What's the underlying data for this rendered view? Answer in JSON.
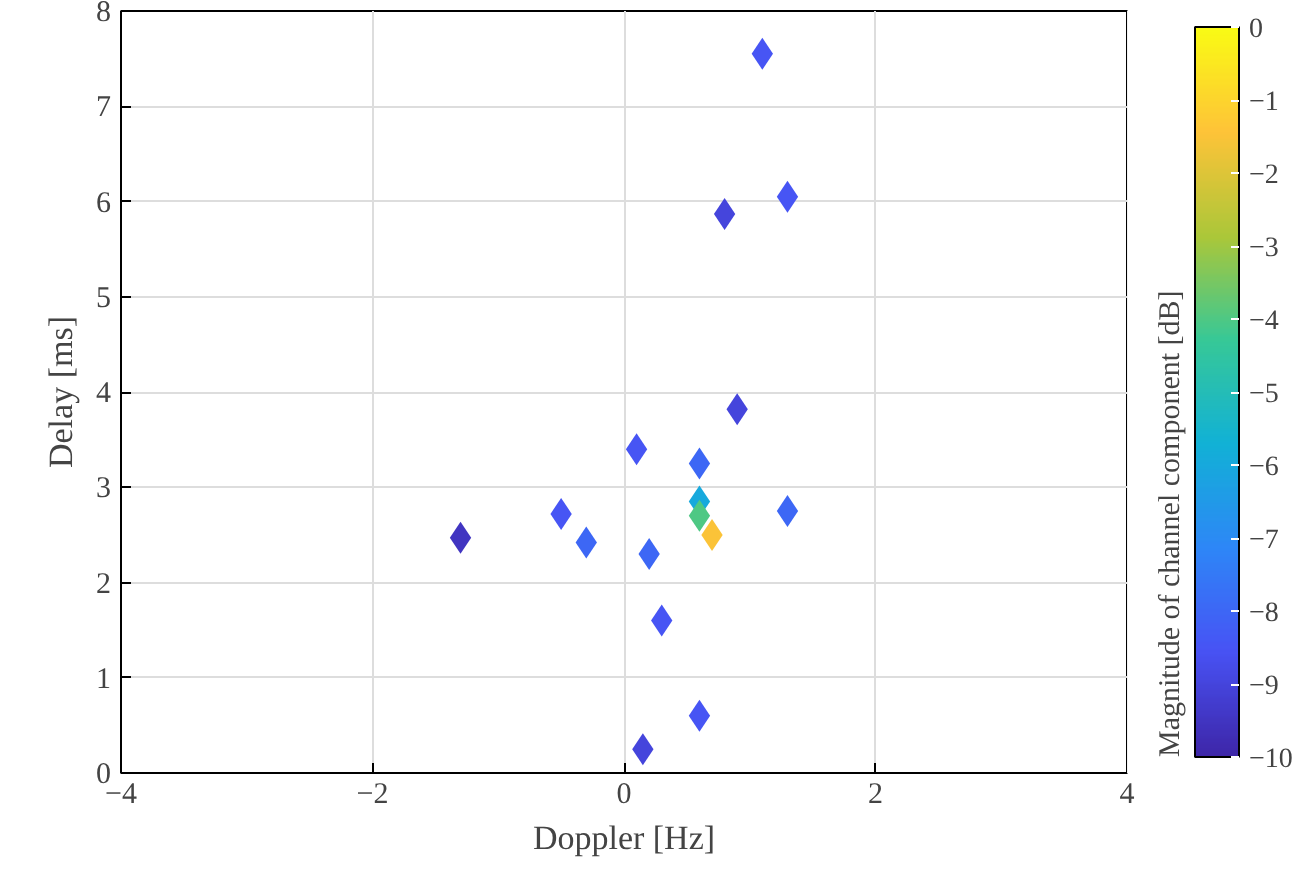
{
  "chart_data": {
    "type": "scatter",
    "xlabel": "Doppler [Hz]",
    "ylabel": "Delay [ms]",
    "clabel": "Magnitude of channel component [dB]",
    "x": [
      1.1,
      1.3,
      0.8,
      0.9,
      0.1,
      0.6,
      0.6,
      0.6,
      0.7,
      1.3,
      -0.5,
      -0.3,
      0.2,
      -1.3,
      0.3,
      0.6,
      0.15
    ],
    "values": [
      7.55,
      6.05,
      5.87,
      3.82,
      3.4,
      3.25,
      2.85,
      2.7,
      2.5,
      2.75,
      2.72,
      2.42,
      2.3,
      2.47,
      1.6,
      0.6,
      0.25
    ],
    "cvalues": [
      -8.5,
      -8.5,
      -9,
      -9,
      -8.5,
      -8,
      -6,
      -4,
      -1.5,
      -8,
      -8.5,
      -8,
      -8,
      -9.5,
      -8.5,
      -8.5,
      -9
    ],
    "xlim": [
      -4,
      4
    ],
    "ylim": [
      0,
      8
    ],
    "xticks": [
      -4,
      -2,
      0,
      2,
      4
    ],
    "yticks": [
      0,
      1,
      2,
      3,
      4,
      5,
      6,
      7,
      8
    ],
    "clim": [
      -10,
      0
    ],
    "cticks": [
      -10,
      -9,
      -8,
      -7,
      -6,
      -5,
      -4,
      -3,
      -2,
      -1,
      0
    ],
    "grid": true,
    "marker": "diamond"
  }
}
